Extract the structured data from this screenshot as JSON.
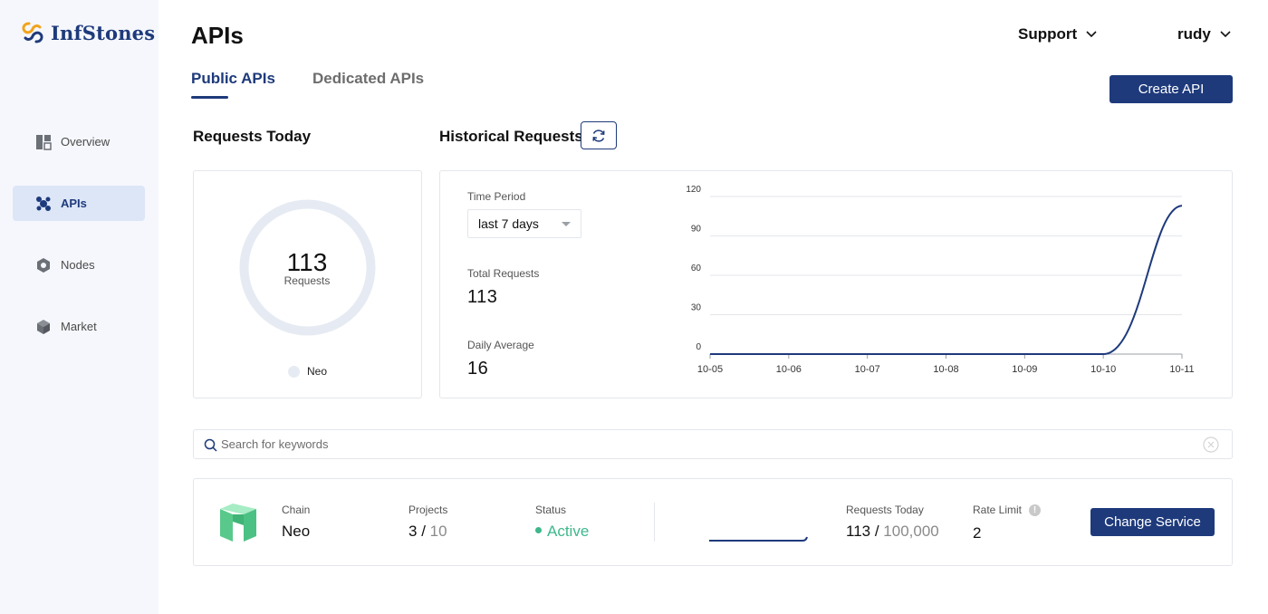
{
  "brand": {
    "name": "InfStones"
  },
  "sidebar": {
    "items": [
      {
        "label": "Overview",
        "icon": "dashboard-icon",
        "active": false
      },
      {
        "label": "APIs",
        "icon": "apis-icon",
        "active": true
      },
      {
        "label": "Nodes",
        "icon": "nodes-icon",
        "active": false
      },
      {
        "label": "Market",
        "icon": "market-icon",
        "active": false
      }
    ]
  },
  "header": {
    "title": "APIs",
    "support_label": "Support",
    "user_label": "rudy"
  },
  "tabs": [
    {
      "label": "Public APIs",
      "active": true
    },
    {
      "label": "Dedicated APIs",
      "active": false
    }
  ],
  "actions": {
    "create_api": "Create API"
  },
  "requests_today": {
    "title": "Requests Today",
    "value": "113",
    "unit": "Requests",
    "legend": "Neo"
  },
  "historical": {
    "title": "Historical Requests",
    "time_period_label": "Time Period",
    "time_period_value": "last 7 days",
    "total_label": "Total Requests",
    "total_value": "113",
    "avg_label": "Daily Average",
    "avg_value": "16"
  },
  "chart_data": {
    "type": "line",
    "title": "Historical Requests",
    "categories": [
      "10-05",
      "10-06",
      "10-07",
      "10-08",
      "10-09",
      "10-10",
      "10-11"
    ],
    "series": [
      {
        "name": "Neo",
        "values": [
          0,
          0,
          0,
          0,
          0,
          0,
          113
        ]
      }
    ],
    "y_ticks": [
      0,
      30,
      60,
      90,
      120
    ],
    "ylim": [
      0,
      120
    ],
    "grid": true,
    "color": "#1e3a7b"
  },
  "search": {
    "placeholder": "Search for keywords"
  },
  "service_row": {
    "chain_label": "Chain",
    "chain_value": "Neo",
    "projects_label": "Projects",
    "projects_used": "3",
    "projects_sep": " / ",
    "projects_total": "10",
    "status_label": "Status",
    "status_value": "Active",
    "requests_label": "Requests Today",
    "requests_used": "113",
    "requests_sep": " / ",
    "requests_total": "100,000",
    "rate_label": "Rate Limit",
    "rate_value": "2",
    "change_service": "Change Service"
  },
  "colors": {
    "brand": "#1e3a7b",
    "sidebar_bg": "#f5f7fc",
    "active_nav_bg": "#dde6f7",
    "status_active": "#3db88b",
    "neo_green": "#58c98a"
  }
}
